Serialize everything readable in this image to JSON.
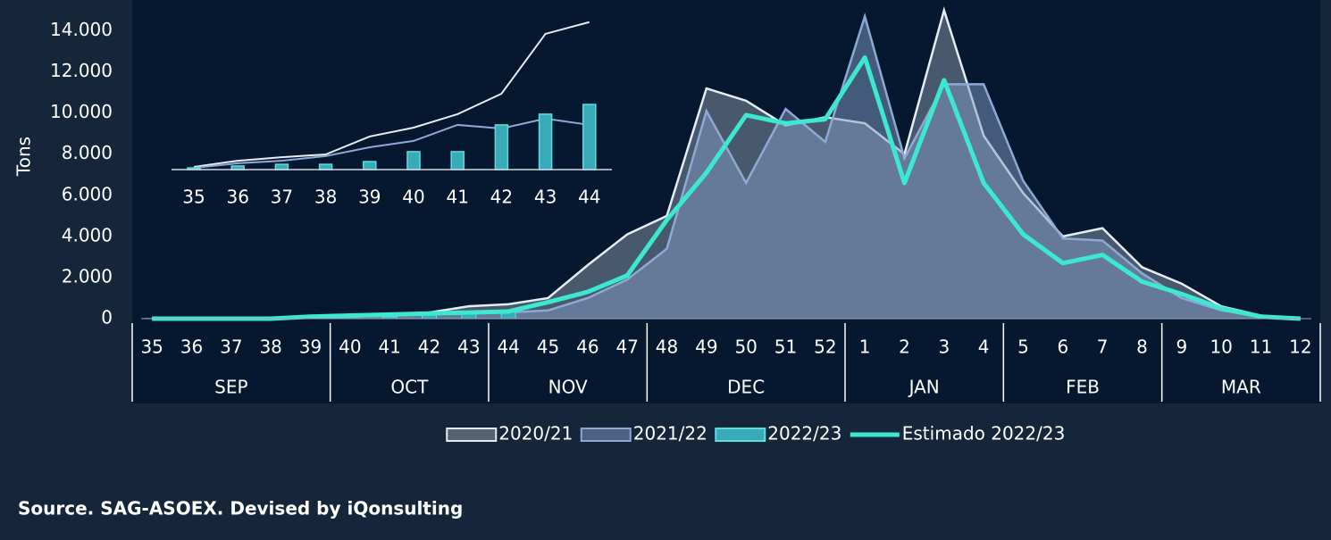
{
  "chart_data": [
    {
      "type": "area",
      "ylabel": "Tons",
      "categories": [
        "35",
        "36",
        "37",
        "38",
        "39",
        "40",
        "41",
        "42",
        "43",
        "44",
        "45",
        "46",
        "47",
        "48",
        "49",
        "50",
        "51",
        "52",
        "1",
        "2",
        "3",
        "4",
        "5",
        "6",
        "7",
        "8",
        "9",
        "10",
        "11",
        "12"
      ],
      "groups": [
        {
          "name": "SEP",
          "count": 5
        },
        {
          "name": "OCT",
          "count": 4
        },
        {
          "name": "NOV",
          "count": 4
        },
        {
          "name": "DEC",
          "count": 5
        },
        {
          "name": "JAN",
          "count": 4
        },
        {
          "name": "FEB",
          "count": 4
        },
        {
          "name": "MAR",
          "count": 4
        }
      ],
      "ylim": [
        0,
        15500
      ],
      "yticks": [
        0,
        {
          "value": 2000,
          "label": "2.000"
        },
        {
          "value": 4000,
          "label": "4.000"
        },
        {
          "value": 6000,
          "label": "6.000"
        },
        {
          "value": 8000,
          "label": "8.000"
        },
        {
          "value": 10000,
          "label": "10.000"
        },
        {
          "value": 12000,
          "label": "12.000"
        },
        {
          "value": 14000,
          "label": "14.000"
        }
      ],
      "series": [
        {
          "name": "2020/21",
          "kind": "area",
          "color": "#e6edf3",
          "fill": "rgba(200,212,224,0.35)",
          "values": [
            0,
            0,
            0,
            0,
            100,
            150,
            200,
            300,
            600,
            700,
            1000,
            2600,
            4100,
            5000,
            11200,
            10600,
            9400,
            9800,
            9500,
            8000,
            15000,
            8900,
            6100,
            4000,
            4400,
            2500,
            1700,
            600,
            150,
            0
          ]
        },
        {
          "name": "2021/22",
          "kind": "area",
          "color": "#8fa9d6",
          "fill": "rgba(130,155,195,0.5)",
          "values": [
            0,
            0,
            0,
            0,
            50,
            100,
            150,
            200,
            300,
            300,
            400,
            1000,
            1900,
            3400,
            10100,
            6600,
            10200,
            8600,
            14700,
            7800,
            11400,
            11400,
            6700,
            3900,
            3800,
            2200,
            1000,
            400,
            100,
            0
          ]
        },
        {
          "name": "2022/23",
          "kind": "bar",
          "color": "#58e0e0",
          "fill": "#3aa9b8",
          "values": [
            8,
            17,
            25,
            25,
            38,
            85,
            85,
            212,
            263,
            309,
            null,
            null,
            null,
            null,
            null,
            null,
            null,
            null,
            null,
            null,
            null,
            null,
            null,
            null,
            null,
            null,
            null,
            null,
            null,
            null
          ]
        },
        {
          "name": "Estimado 2022/23",
          "kind": "line",
          "color": "#3de8d0",
          "values": [
            0,
            0,
            0,
            0,
            100,
            150,
            200,
            250,
            300,
            350,
            800,
            1300,
            2100,
            4800,
            7100,
            9900,
            9500,
            9700,
            12700,
            6600,
            11600,
            6600,
            4100,
            2700,
            3100,
            1800,
            1200,
            500,
            100,
            0
          ]
        }
      ],
      "source": "Source. SAG-ASOEX. Devised by iQonsulting"
    },
    {
      "type": "inset",
      "categories": [
        "35",
        "36",
        "37",
        "38",
        "39",
        "40",
        "41",
        "42",
        "43",
        "44"
      ],
      "ylim": [
        0,
        720
      ],
      "series": [
        {
          "name": "2020/21",
          "kind": "line",
          "color": "#e6edf3",
          "values": [
            13,
            42,
            59,
            72,
            157,
            199,
            263,
            360,
            644,
            700
          ]
        },
        {
          "name": "2021/22",
          "kind": "line",
          "color": "#8fa9d6",
          "values": [
            8,
            30,
            42,
            64,
            106,
            136,
            212,
            195,
            242,
            212
          ]
        },
        {
          "name": "2022/23",
          "kind": "bar",
          "color": "#58e0e0",
          "fill": "#3aa9b8",
          "values": [
            8,
            17,
            25,
            25,
            38,
            85,
            85,
            212,
            263,
            309
          ]
        }
      ]
    }
  ]
}
